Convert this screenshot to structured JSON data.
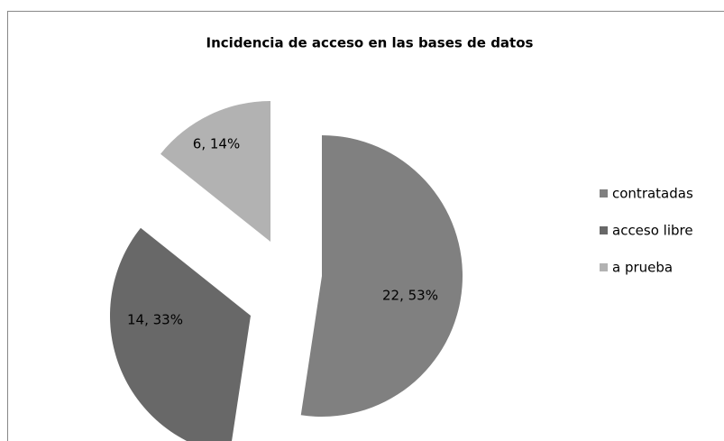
{
  "chart_data": {
    "type": "pie",
    "title": "Incidencia de acceso en las bases de datos",
    "categories": [
      "contratadas",
      "acceso libre",
      "a prueba"
    ],
    "values": [
      22,
      14,
      6
    ],
    "value_labels": [
      "22, 53%",
      "14, 33%",
      "6, 14%"
    ],
    "colors": [
      "#808080",
      "#686868",
      "#b2b2b2"
    ],
    "legend": "right"
  }
}
